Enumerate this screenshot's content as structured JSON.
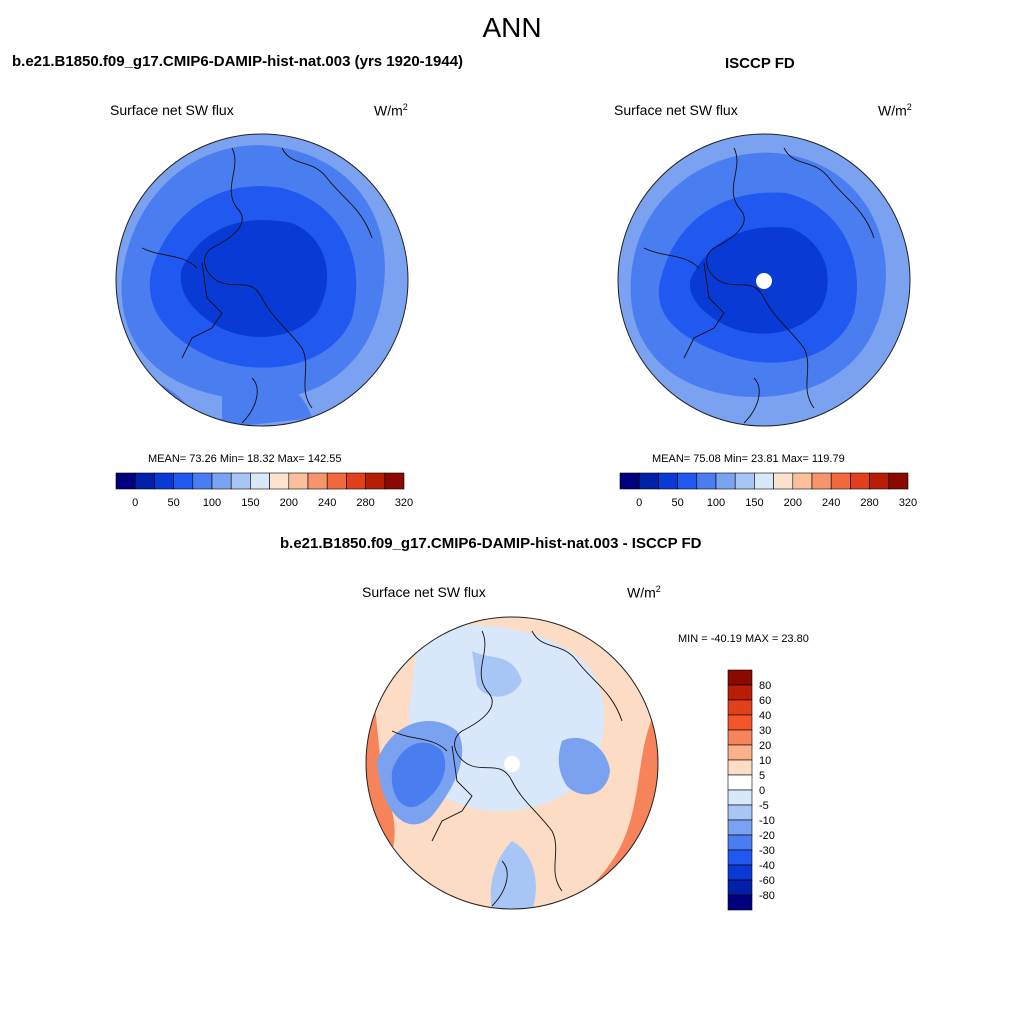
{
  "main_title": "ANN",
  "panel_left": {
    "case_title": "b.e21.B1850.f09_g17.CMIP6-DAMIP-hist-nat.003 (yrs 1920-1944)",
    "variable": "Surface net SW flux",
    "units": "W/m",
    "units_sup": "2",
    "stats": "MEAN=  73.26  Min=  18.32  Max= 142.55"
  },
  "panel_right": {
    "case_title": "ISCCP FD",
    "variable": "Surface net SW flux",
    "units": "W/m",
    "units_sup": "2",
    "stats": "MEAN=  75.08  Min=  23.81  Max= 119.79"
  },
  "panel_diff": {
    "case_title": "b.e21.B1850.f09_g17.CMIP6-DAMIP-hist-nat.003 - ISCCP FD",
    "variable": "Surface net SW flux",
    "units": "W/m",
    "units_sup": "2",
    "minmax": "MIN = -40.19 MAX =  23.80"
  },
  "colorbar_abs": {
    "colors": [
      "#00007f",
      "#0020a8",
      "#0a3ad6",
      "#2058f0",
      "#4a7df0",
      "#7aa2f0",
      "#a8c6f5",
      "#d8e8fa",
      "#fce3d0",
      "#fbbf9c",
      "#f6946c",
      "#f26a3c",
      "#e0401a",
      "#b81e06",
      "#8a0a00"
    ],
    "labels": [
      "0",
      "50",
      "100",
      "150",
      "200",
      "240",
      "280",
      "320"
    ]
  },
  "colorbar_diff": {
    "colors": [
      "#8a0a00",
      "#b81e06",
      "#e0401a",
      "#f6552a",
      "#f6835a",
      "#fbb28a",
      "#fcdcc4",
      "#ffffff",
      "#d8e8fa",
      "#a8c6f5",
      "#7aa2f0",
      "#4a7df0",
      "#2058f0",
      "#0a3ad6",
      "#0020a8",
      "#00007f"
    ],
    "labels": [
      "80",
      "60",
      "40",
      "30",
      "20",
      "10",
      "5",
      "0",
      "-5",
      "-10",
      "-20",
      "-30",
      "-40",
      "-60",
      "-80"
    ]
  }
}
